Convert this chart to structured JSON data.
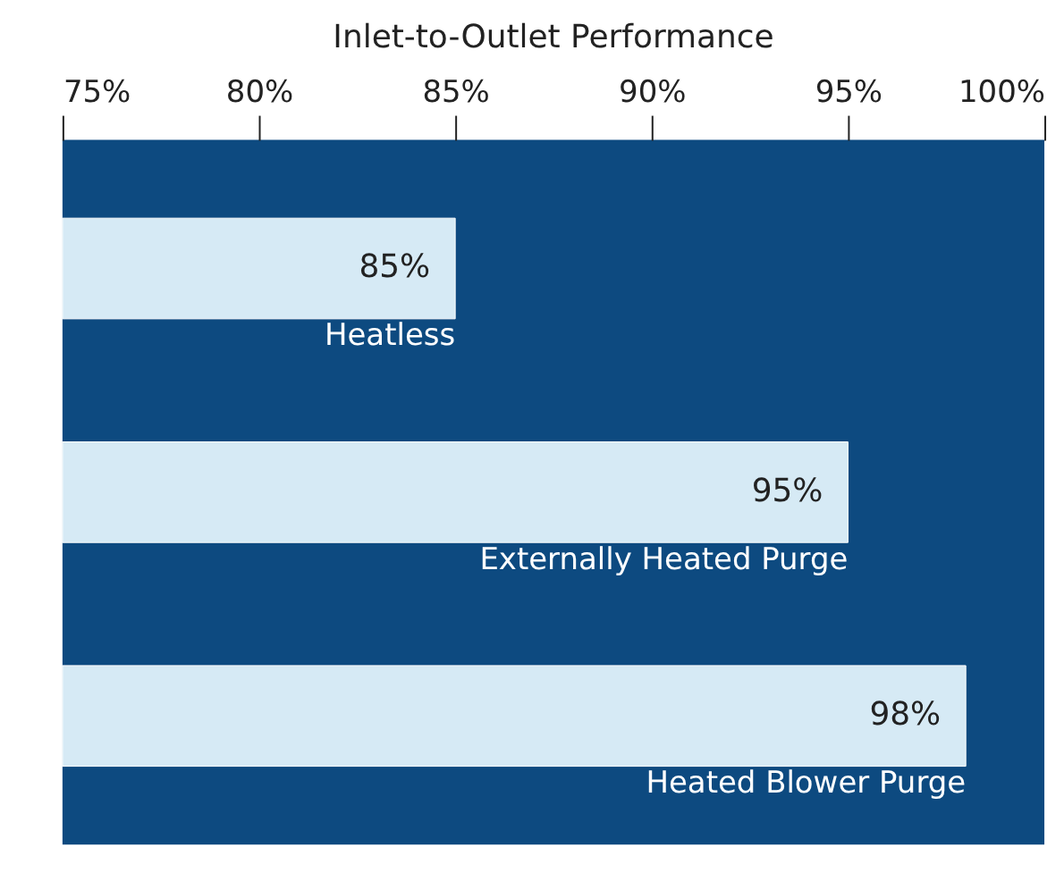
{
  "chart_data": {
    "type": "bar",
    "orientation": "horizontal",
    "title": "Inlet-to-Outlet Performance",
    "categories": [
      "Heatless",
      "Externally Heated Purge",
      "Heated Blower Purge"
    ],
    "values": [
      85,
      95,
      98
    ],
    "color": "#d6eaf5",
    "value_labels": [
      "85%",
      "95%",
      "98%"
    ],
    "xlim": [
      75,
      100
    ],
    "xticks": [
      {
        "value": 75,
        "label": "75%"
      },
      {
        "value": 80,
        "label": "80%"
      },
      {
        "value": 85,
        "label": "85%"
      },
      {
        "value": 90,
        "label": "90%"
      },
      {
        "value": 95,
        "label": "95%"
      },
      {
        "value": 100,
        "label": "100%"
      }
    ],
    "grid": false
  }
}
